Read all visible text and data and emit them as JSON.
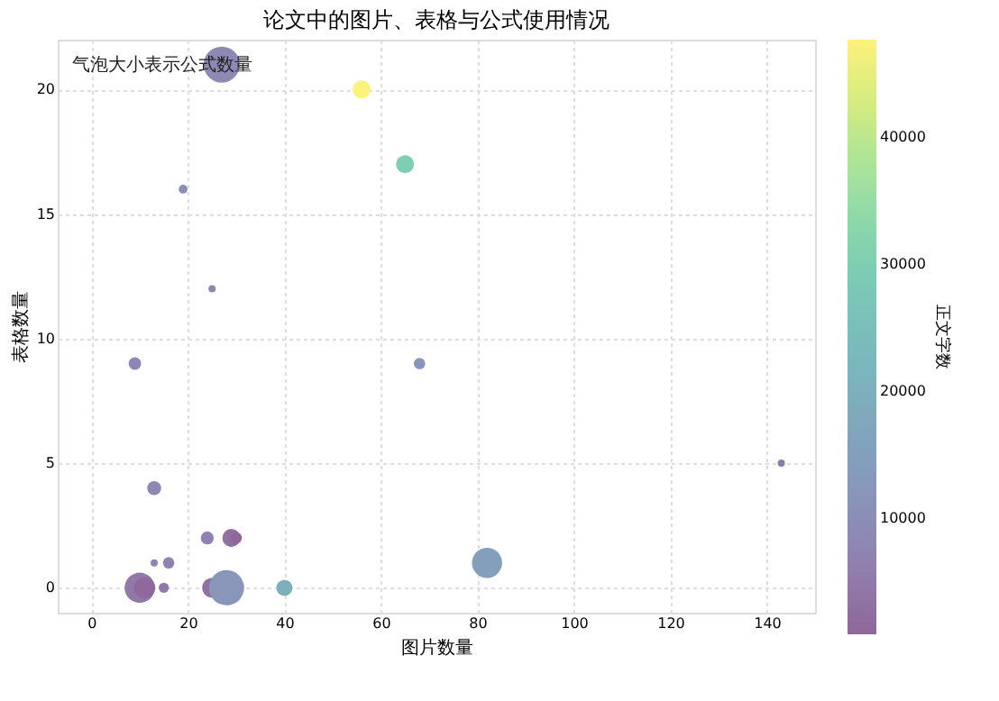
{
  "chart_data": {
    "type": "bubble",
    "title": "论文中的图片、表格与公式使用情况",
    "xlabel": "图片数量",
    "ylabel": "表格数量",
    "clabel": "正文字数",
    "annotations": [
      "气泡大小表示公式数量"
    ],
    "x": [
      27,
      56,
      65,
      19,
      25,
      9,
      68,
      143,
      13,
      82,
      24,
      29,
      30,
      13,
      16,
      10,
      11,
      15,
      25,
      28,
      40
    ],
    "values": [
      21,
      20,
      17,
      16,
      12,
      9,
      9,
      5,
      4,
      1,
      2,
      2,
      2,
      1,
      1,
      0,
      0,
      0,
      0,
      0,
      0
    ],
    "sizes": [
      1.0,
      0.25,
      0.25,
      0.06,
      0.04,
      0.12,
      0.1,
      0.04,
      0.15,
      0.7,
      0.13,
      0.25,
      0.1,
      0.04,
      0.1,
      0.7,
      0.35,
      0.08,
      0.3,
      0.95,
      0.2
    ],
    "cvalues": [
      9000,
      47700,
      30000,
      10000,
      8000,
      8000,
      12000,
      5000,
      8000,
      15000,
      7000,
      3000,
      1000,
      7000,
      7000,
      5000,
      1500,
      5000,
      3000,
      12000,
      20000
    ],
    "clim": [
      950,
      47700
    ],
    "cticks": [
      10000,
      20000,
      30000,
      40000
    ],
    "xlim": [
      -7,
      150
    ],
    "xticks": [
      0,
      20,
      40,
      60,
      80,
      100,
      120,
      140
    ],
    "ylim": [
      -1,
      22
    ],
    "yticks": [
      0,
      5,
      10,
      15,
      20
    ],
    "grid": true
  }
}
